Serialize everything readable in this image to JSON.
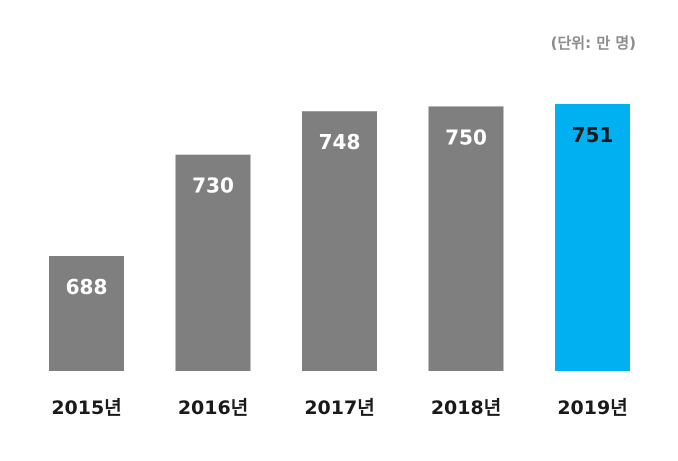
{
  "chart_data": {
    "type": "bar",
    "unit_label": "(단위: 만 명)",
    "categories": [
      "2015년",
      "2016년",
      "2017년",
      "2018년",
      "2019년"
    ],
    "values": [
      688,
      730,
      748,
      750,
      751
    ],
    "highlight_index": 4,
    "colors": {
      "bar": "#7f7f7f",
      "highlight": "#00b0f0",
      "label_on_bar": "#ffffff",
      "label_on_highlight": "#1a1a1a",
      "category_text": "#1a1a1a",
      "unit_text": "#8c8c8c"
    },
    "grid": false,
    "legend": "none"
  }
}
